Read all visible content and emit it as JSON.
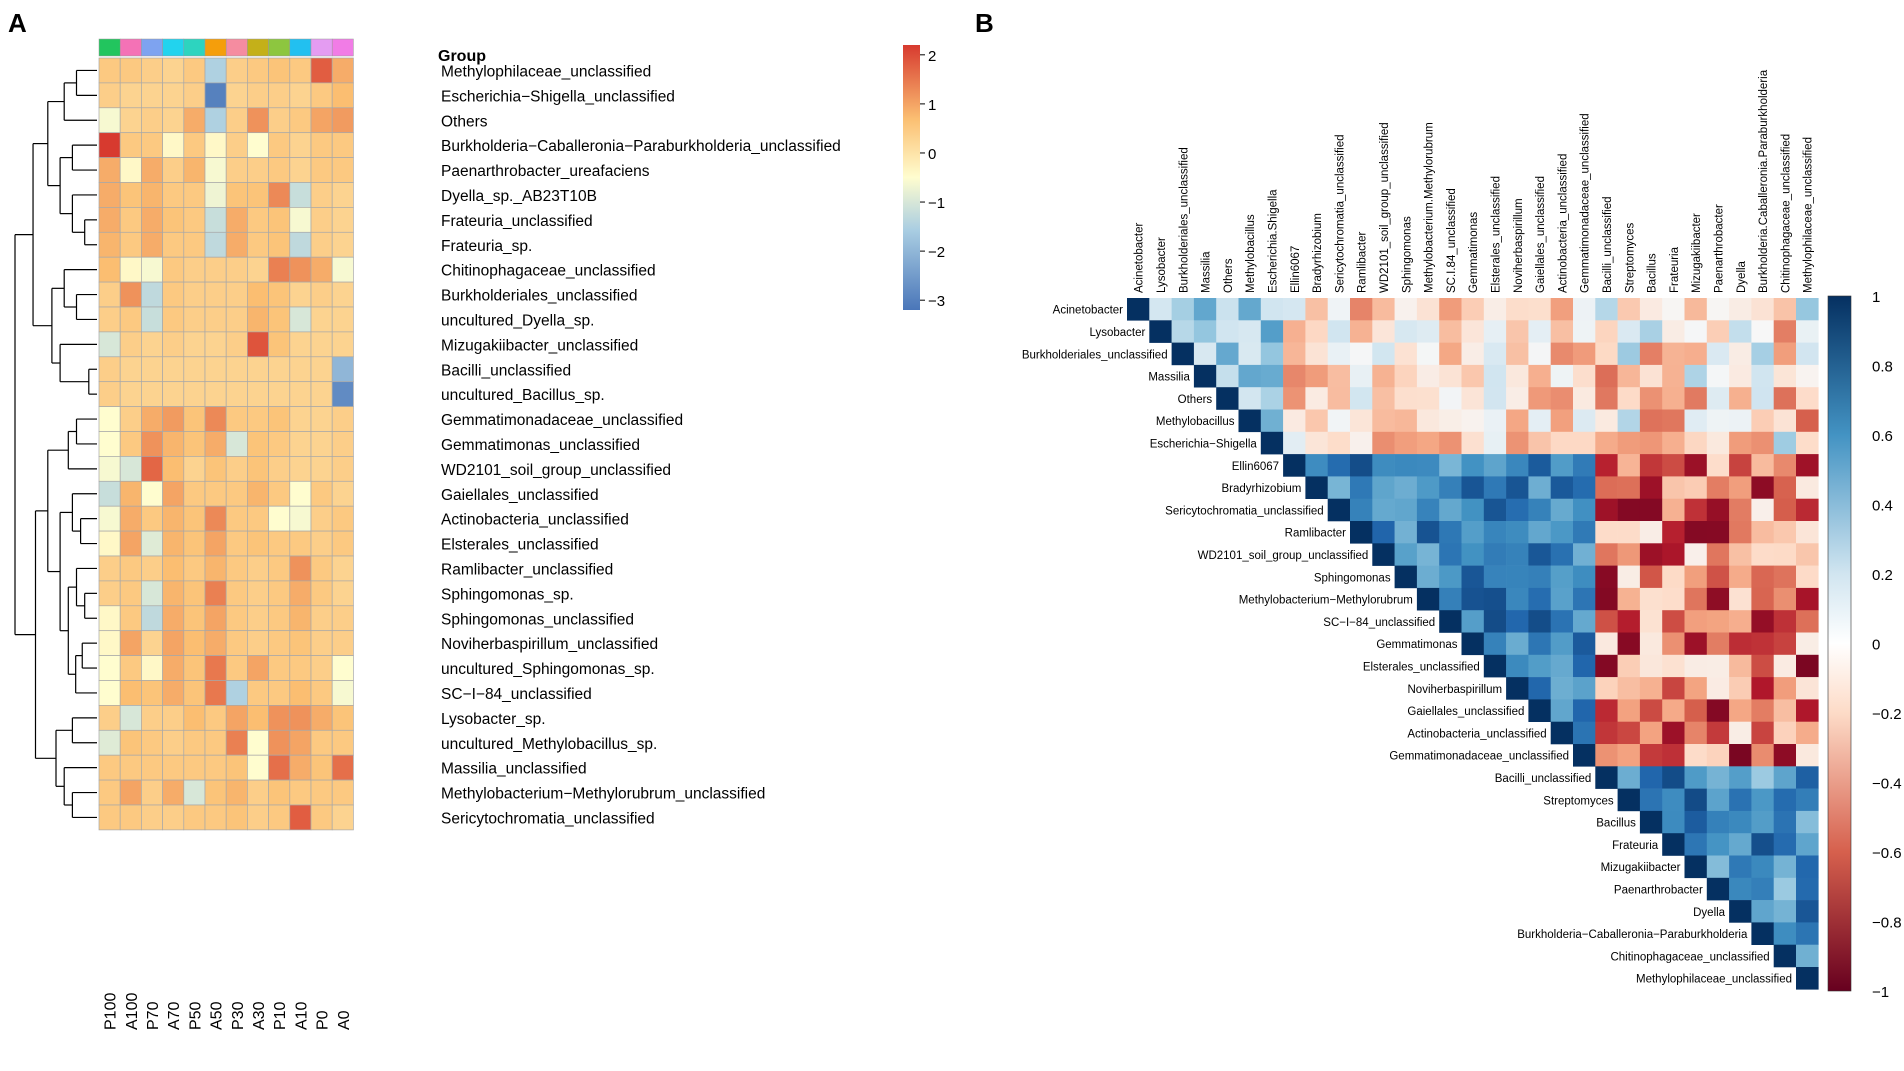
{
  "chart_data": [
    {
      "type": "heatmap",
      "panel_label": "A",
      "group_label": "Group",
      "columns": [
        "P100",
        "A100",
        "P70",
        "A70",
        "P50",
        "A50",
        "P30",
        "A30",
        "P10",
        "A10",
        "P0",
        "A0"
      ],
      "group_colors": [
        "#22c55e",
        "#f472b6",
        "#7ea3f0",
        "#22d3ee",
        "#2dd4bf",
        "#f59e0b",
        "#f58ca0",
        "#c4b019",
        "#8dc63f",
        "#22c0f0",
        "#e49cf2",
        "#f17ce6"
      ],
      "rows": [
        "Methylophilaceae_unclassified",
        "Escherichia−Shigella_unclassified",
        "Others",
        "Burkholderia−Caballeronia−Paraburkholderia_unclassified",
        "Paenarthrobacter_ureafaciens",
        "Dyella_sp._AB23T10B",
        "Frateuria_unclassified",
        "Frateuria_sp.",
        "Chitinophagaceae_unclassified",
        "Burkholderiales_unclassified",
        "uncultured_Dyella_sp.",
        "Mizugakiibacter_unclassified",
        "Bacilli_unclassified",
        "uncultured_Bacillus_sp.",
        "Gemmatimonadaceae_unclassified",
        "Gemmatimonas_unclassified",
        "WD2101_soil_group_unclassified",
        "Gaiellales_unclassified",
        "Actinobacteria_unclassified",
        "Elsterales_unclassified",
        "Ramlibacter_unclassified",
        "Sphingomonas_sp.",
        "Sphingomonas_unclassified",
        "Noviherbaspirillum_unclassified",
        "uncultured_Sphingomonas_sp.",
        "SC−I−84_unclassified",
        "Lysobacter_sp.",
        "uncultured_Methylobacillus_sp.",
        "Massilia_unclassified",
        "Methylobacterium−Methylorubrum_unclassified",
        "Sericytochromatia_unclassified"
      ],
      "values": [
        [
          0.5,
          0.5,
          0.4,
          0.3,
          0.5,
          -1.5,
          0.4,
          0.5,
          0.6,
          0.5,
          1.8,
          0.9
        ],
        [
          0.4,
          0.3,
          0.3,
          0.3,
          0.4,
          -3.0,
          0.3,
          0.4,
          0.4,
          0.3,
          0.5,
          0.7
        ],
        [
          -0.6,
          0.3,
          0.4,
          0.3,
          0.9,
          -1.5,
          0.4,
          1.2,
          0.4,
          0.5,
          1.0,
          1.1
        ],
        [
          2.2,
          0.5,
          0.5,
          -0.4,
          0.5,
          -0.4,
          0.4,
          -0.5,
          0.5,
          0.3,
          0.5,
          0.5
        ],
        [
          0.9,
          -0.4,
          0.9,
          0.4,
          0.8,
          -0.6,
          0.4,
          0.4,
          0.5,
          0.3,
          0.5,
          0.5
        ],
        [
          0.9,
          0.6,
          0.8,
          0.5,
          0.5,
          -0.7,
          0.6,
          0.6,
          1.3,
          -1.2,
          0.4,
          0.3
        ],
        [
          0.9,
          0.5,
          0.9,
          0.6,
          0.5,
          -1.2,
          0.9,
          0.5,
          0.6,
          -0.6,
          0.4,
          0.3
        ],
        [
          0.8,
          0.5,
          0.9,
          0.5,
          0.5,
          -1.3,
          0.9,
          0.5,
          0.6,
          -1.3,
          0.4,
          0.3
        ],
        [
          0.7,
          -0.4,
          -0.6,
          0.5,
          0.4,
          0.4,
          0.4,
          0.3,
          1.4,
          1.2,
          0.9,
          -0.6
        ],
        [
          0.4,
          1.2,
          -1.3,
          0.5,
          0.4,
          0.4,
          0.4,
          0.7,
          0.6,
          0.3,
          0.4,
          0.3
        ],
        [
          0.4,
          0.5,
          -1.2,
          0.5,
          0.4,
          0.4,
          0.4,
          0.8,
          0.6,
          -1.0,
          0.3,
          0.3
        ],
        [
          -1.0,
          0.4,
          0.3,
          0.4,
          0.3,
          0.3,
          0.4,
          1.9,
          0.6,
          0.3,
          0.3,
          0.3
        ],
        [
          0.4,
          0.3,
          0.3,
          0.3,
          0.3,
          0.3,
          0.3,
          0.3,
          0.3,
          0.3,
          0.3,
          -2.0
        ],
        [
          0.4,
          0.3,
          0.3,
          0.3,
          0.3,
          0.3,
          0.3,
          0.3,
          0.3,
          0.3,
          0.3,
          -2.8
        ],
        [
          -0.5,
          0.4,
          0.9,
          1.1,
          0.6,
          1.3,
          0.5,
          0.5,
          0.6,
          0.3,
          0.3,
          0.4
        ],
        [
          -0.5,
          0.5,
          1.2,
          0.8,
          0.6,
          0.9,
          -1.0,
          0.6,
          0.5,
          0.3,
          0.3,
          0.4
        ],
        [
          -0.6,
          -1.0,
          1.7,
          0.7,
          0.3,
          0.6,
          0.4,
          0.6,
          0.4,
          0.3,
          0.3,
          0.4
        ],
        [
          -1.2,
          0.8,
          -0.5,
          1.0,
          0.5,
          0.5,
          0.5,
          0.8,
          0.5,
          -0.5,
          0.5,
          0.3
        ],
        [
          -0.6,
          0.9,
          0.5,
          0.8,
          0.6,
          1.3,
          0.5,
          0.5,
          -0.5,
          -0.6,
          0.4,
          0.5
        ],
        [
          -0.4,
          1.0,
          -0.9,
          0.8,
          0.6,
          1.0,
          0.5,
          0.6,
          0.5,
          0.5,
          0.4,
          0.5
        ],
        [
          0.4,
          0.5,
          0.4,
          0.7,
          0.5,
          0.8,
          0.5,
          0.4,
          0.5,
          1.2,
          0.5,
          0.3
        ],
        [
          0.4,
          0.5,
          -1.0,
          0.8,
          0.6,
          1.4,
          0.5,
          0.4,
          0.5,
          0.9,
          0.5,
          0.3
        ],
        [
          -0.4,
          0.5,
          -1.3,
          0.9,
          0.6,
          1.0,
          0.5,
          0.4,
          0.5,
          0.8,
          0.4,
          0.4
        ],
        [
          -0.4,
          1.0,
          0.3,
          1.0,
          0.7,
          0.9,
          0.5,
          0.4,
          0.5,
          0.6,
          0.4,
          0.4
        ],
        [
          -0.5,
          0.5,
          -0.4,
          0.9,
          0.6,
          1.5,
          0.5,
          1.0,
          0.5,
          0.5,
          0.4,
          -0.5
        ],
        [
          -0.5,
          0.7,
          0.6,
          0.9,
          0.6,
          1.5,
          -1.5,
          0.5,
          0.5,
          0.7,
          0.5,
          -0.6
        ],
        [
          0.4,
          -1.0,
          0.4,
          0.4,
          0.7,
          0.5,
          1.0,
          0.7,
          1.2,
          1.2,
          0.9,
          0.6
        ],
        [
          -0.9,
          0.6,
          0.5,
          0.4,
          0.5,
          0.5,
          1.4,
          -0.5,
          1.2,
          1.0,
          0.5,
          0.5
        ],
        [
          0.5,
          0.5,
          0.5,
          0.5,
          0.5,
          0.5,
          0.6,
          -0.5,
          1.6,
          0.9,
          0.6,
          1.6
        ],
        [
          0.5,
          1.0,
          0.4,
          0.9,
          -1.0,
          0.6,
          0.8,
          0.4,
          0.6,
          0.5,
          0.5,
          0.5
        ],
        [
          0.5,
          0.5,
          0.4,
          0.4,
          0.5,
          0.5,
          0.6,
          0.4,
          0.5,
          1.8,
          0.5,
          0.3
        ]
      ],
      "dendrogram": "hierarchical clustering of rows (left)",
      "legend": {
        "ticks": [
          2,
          1,
          0,
          -1,
          -2,
          -3
        ],
        "tick_labels": [
          "2",
          "1",
          "0",
          "−1",
          "−2",
          "−3"
        ],
        "range": [
          -3.2,
          2.2
        ]
      }
    },
    {
      "type": "heatmap",
      "subtype": "correlation_upper_triangle",
      "panel_label": "B",
      "labels": [
        "Acinetobacter",
        "Lysobacter",
        "Burkholderiales_unclassified",
        "Massilia",
        "Others",
        "Methylobacillus",
        "Escherichia−Shigella",
        "Ellin6067",
        "Bradyrhizobium",
        "Sericytochromatia_unclassified",
        "Ramlibacter",
        "WD2101_soil_group_unclassified",
        "Sphingomonas",
        "Methylobacterium−Methylorubrum",
        "SC−I−84_unclassified",
        "Gemmatimonas",
        "Elsterales_unclassified",
        "Noviherbaspirillum",
        "Gaiellales_unclassified",
        "Actinobacteria_unclassified",
        "Gemmatimonadaceae_unclassified",
        "Bacilli_unclassified",
        "Streptomyces",
        "Bacillus",
        "Frateuria",
        "Mizugakiibacter",
        "Paenarthrobacter",
        "Dyella",
        "Burkholderia−Caballeronia−Paraburkholderia",
        "Chitinophagaceae_unclassified",
        "Methylophilaceae_unclassified"
      ],
      "col_labels": [
        "Acinetobacter",
        "Lysobacter",
        "Burkholderiales_unclassified",
        "Massilia",
        "Others",
        "Methylobacillus",
        "Escherichia.Shigella",
        "Ellin6067",
        "Bradyrhizobium",
        "Sericytochromatia_unclassified",
        "Ramlibacter",
        "WD2101_soil_group_unclassified",
        "Sphingomonas",
        "Methylobacterium.Methylorubrum",
        "SC.I.84_unclassified",
        "Gemmatimonas",
        "Elsterales_unclassified",
        "Noviherbaspirillum",
        "Gaiellales_unclassified",
        "Actinobacteria_unclassified",
        "Gemmatimonadaceae_unclassified",
        "Bacilli_unclassified",
        "Streptomyces",
        "Bacillus",
        "Frateuria",
        "Mizugakiibacter",
        "Paenarthrobacter",
        "Dyella",
        "Burkholderia.Caballeronia.Paraburkholderia",
        "Chitinophagaceae_unclassified",
        "Methylophilaceae_unclassified"
      ],
      "legend": {
        "ticks": [
          1,
          0.8,
          0.6,
          0.4,
          0.2,
          0,
          -0.2,
          -0.4,
          -0.6,
          -0.8,
          -1
        ],
        "tick_labels": [
          "1",
          "0.8",
          "0.6",
          "0.4",
          "0.2",
          "0",
          "−0.2",
          "−0.4",
          "−0.6",
          "−0.8",
          "−1"
        ],
        "range": [
          -1,
          1
        ]
      }
    }
  ]
}
